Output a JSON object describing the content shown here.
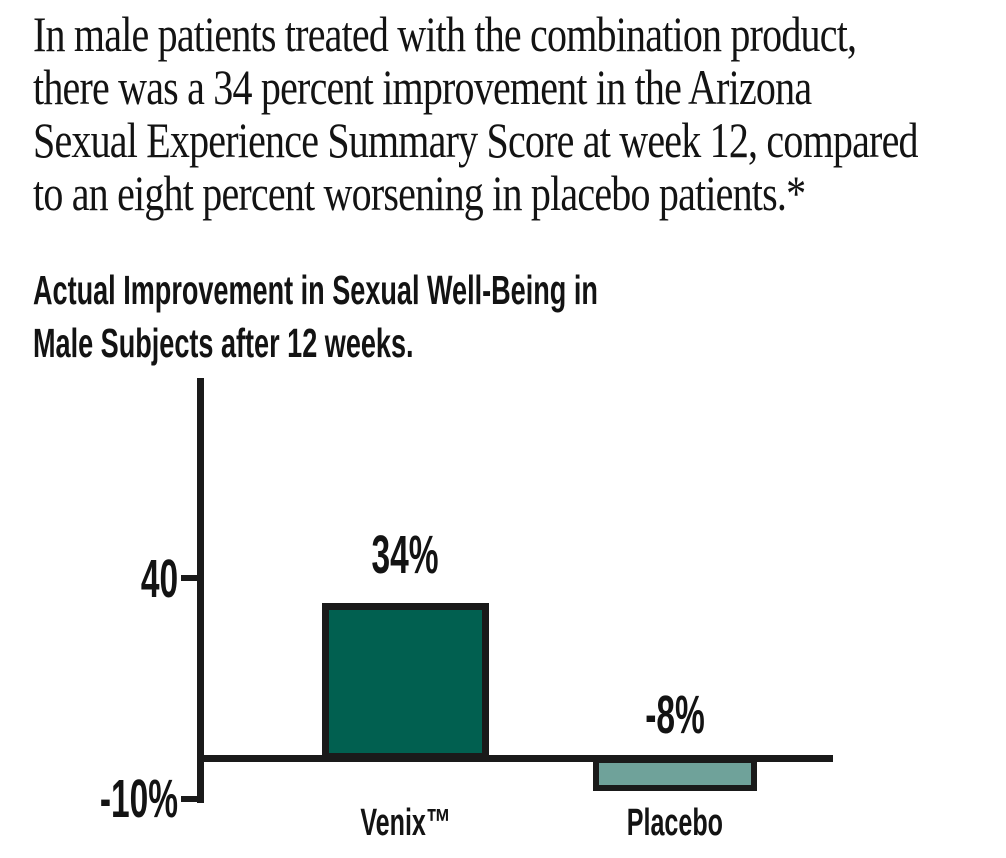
{
  "page": {
    "background": "#ffffff",
    "text_color": "#131313"
  },
  "intro": {
    "lines": [
      "In male patients treated with the combination product,",
      "there was a 34 percent improvement in the Arizona",
      "Sexual Experience Summary Score at week 12, compared",
      "to an eight percent worsening in placebo patients.*"
    ]
  },
  "chart": {
    "title_lines": [
      "Actual Improvement in Sexual Well-Being in",
      "Male Subjects after 12 weeks."
    ]
  },
  "chart_data": {
    "type": "bar",
    "title": "Actual Improvement in Sexual Well-Being in Male Subjects after 12 weeks.",
    "categories": [
      "Venix™",
      "Placebo"
    ],
    "values": [
      34,
      -8
    ],
    "value_labels": [
      "34%",
      "-8%"
    ],
    "yticks": [
      {
        "value": 40,
        "label": "40"
      },
      {
        "value": -10,
        "label": "-10%"
      }
    ],
    "ylim": [
      -10,
      50
    ],
    "grid": false,
    "legend": false,
    "bar_colors": [
      "#016050",
      "#6fa29a"
    ],
    "bar_border_color": "#1a1a1a",
    "axis_color": "#1a1a1a"
  }
}
